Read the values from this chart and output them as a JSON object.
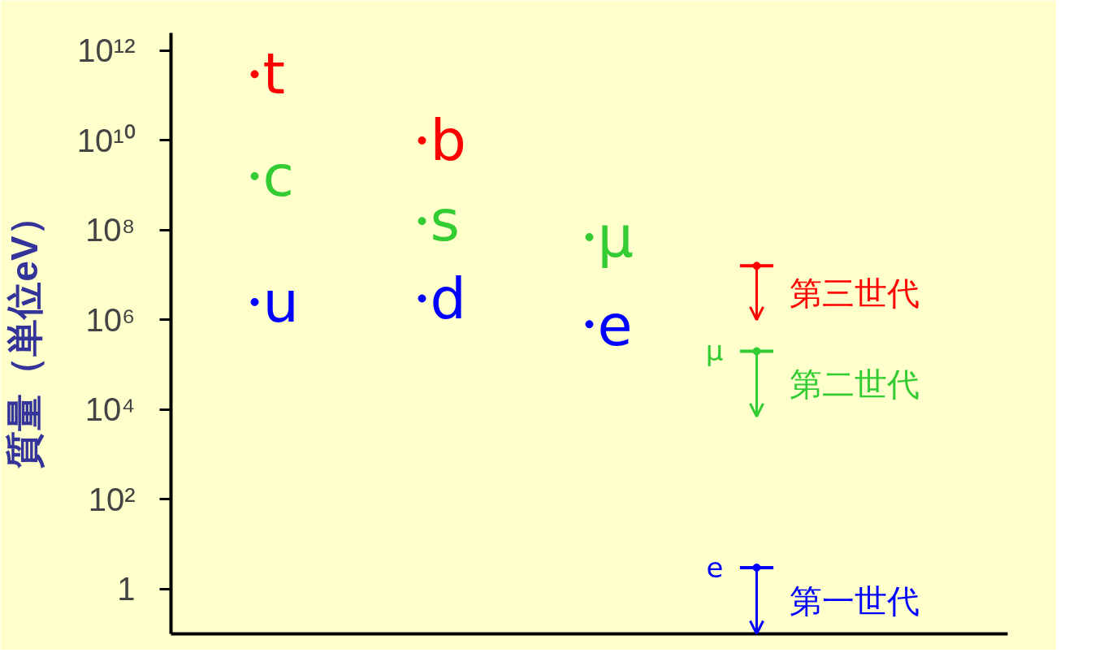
{
  "chart_data": {
    "type": "scatter",
    "ylabel": "質量（単位eV）",
    "log": "y",
    "categories": [
      null,
      null,
      null,
      null,
      null
    ],
    "ylim": [
      0.1,
      2500000000000.0
    ],
    "yticks": [
      {
        "value": 1,
        "label": "1"
      },
      {
        "value": 100,
        "label": "10²"
      },
      {
        "value": 10000,
        "label": "10⁴"
      },
      {
        "value": 1000000,
        "label": "10⁶"
      },
      {
        "value": 100000000,
        "label": "10⁸"
      },
      {
        "value": 10000000000,
        "label": "10¹⁰"
      },
      {
        "value": 1000000000000,
        "label": "10¹²"
      }
    ],
    "tick_labels": "y",
    "grid": false,
    "marker": "circle",
    "legend": "right",
    "series": [
      {
        "name": "第三世代",
        "color": "#ff0000",
        "colors": [
          "#ff0000",
          "#ff0000",
          "#ff0000",
          "#ff0000",
          "#ff0000"
        ],
        "values": [
          300000000000.0,
          10000000000.0,
          null,
          16000000.0,
          null
        ],
        "value_labels": [
          "t",
          "b",
          null,
          null,
          null
        ],
        "errors": [
          null,
          null,
          null,
          [
            1000000.0,
            16000000.0
          ],
          null
        ]
      },
      {
        "name": "第二世代",
        "color": "#33cc33",
        "colors": [
          "#33cc33",
          "#33cc33",
          "#33cc33",
          "#33cc33",
          "#33cc33"
        ],
        "values": [
          1600000000.0,
          160000000.0,
          70000000.0,
          200000.0,
          null
        ],
        "value_labels": [
          "c",
          "s",
          "μ",
          "μ",
          null
        ],
        "errors": [
          null,
          null,
          null,
          [
            7000,
            200000.0
          ],
          null
        ]
      },
      {
        "name": "第一世代",
        "color": "#0000ff",
        "colors": [
          "#0000ff",
          "#0000ff",
          "#0000ff",
          "#0000ff",
          "#0000ff"
        ],
        "values": [
          2500000.0,
          3000000.0,
          800000.0,
          3,
          null
        ],
        "value_labels": [
          "u",
          "d",
          "e",
          "e",
          null
        ],
        "errors": [
          null,
          null,
          null,
          [
            0.1,
            3
          ],
          null
        ]
      }
    ]
  }
}
